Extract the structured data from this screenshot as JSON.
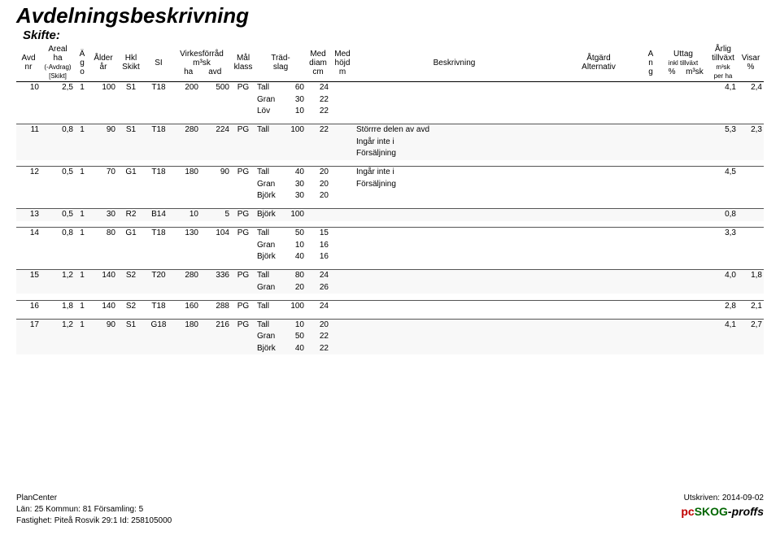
{
  "title": "Avdelningsbeskrivning",
  "subtitle": "Skifte:",
  "head": {
    "avd": "Avd",
    "nr": "nr",
    "areal": "Areal",
    "ha_lbl": "ha",
    "avdrag": "(-Avdrag)",
    "skikt_b": "[Skikt]",
    "ago": "Ä\ng\no",
    "alder": "Ålder",
    "ar": "år",
    "hkl": "Hkl",
    "skikt": "Skikt",
    "si": "SI",
    "virk1": "Virkesförråd",
    "virk2": "m³sk",
    "virk_ha": "ha",
    "virk_avd": "avd",
    "mal": "Mål",
    "klass": "klass",
    "trad": "Träd-",
    "slag": "slag",
    "med_d": "Med",
    "diam": "diam",
    "cm": "cm",
    "med_h": "Med",
    "hojd": "höjd",
    "m": "m",
    "beskr": "Beskrivning",
    "atg": "Åtgärd",
    "alt": "Alternativ",
    "ang": "A\nn\ng",
    "uttag": "Uttag",
    "inkltv": "inkl tillväxt",
    "pct": "%",
    "m3sk": "m³sk",
    "arlig": "Årlig",
    "tillv": "tillväxt",
    "m3skha": "m³sk",
    "perha": "per ha",
    "visar": "Visar",
    "pct2": "%"
  },
  "rows": [
    {
      "shade": false,
      "lines": [
        {
          "avd": "10",
          "areal": "2,5",
          "ago": "1",
          "alder": "100",
          "hkl": "S1",
          "si": "T18",
          "vha": "200",
          "vavd": "500",
          "mal": "PG",
          "trad": "Tall",
          "andel": "60",
          "diam": "24",
          "beskr": "",
          "tillv": "4,1",
          "visar": "2,4"
        },
        {
          "trad": "Gran",
          "andel": "30",
          "diam": "22"
        },
        {
          "trad": "Löv",
          "andel": "10",
          "diam": "22"
        }
      ]
    },
    {
      "shade": true,
      "lines": [
        {
          "avd": "11",
          "areal": "0,8",
          "ago": "1",
          "alder": "90",
          "hkl": "S1",
          "si": "T18",
          "vha": "280",
          "vavd": "224",
          "mal": "PG",
          "trad": "Tall",
          "andel": "100",
          "diam": "22",
          "beskr": "Störrre delen av avd",
          "tillv": "5,3",
          "visar": "2,3"
        },
        {
          "beskr": "Ingår inte i"
        },
        {
          "beskr": "Försäljning"
        }
      ]
    },
    {
      "shade": false,
      "lines": [
        {
          "avd": "12",
          "areal": "0,5",
          "ago": "1",
          "alder": "70",
          "hkl": "G1",
          "si": "T18",
          "vha": "180",
          "vavd": "90",
          "mal": "PG",
          "trad": "Tall",
          "andel": "40",
          "diam": "20",
          "beskr": "Ingår inte i",
          "tillv": "4,5",
          "visar": ""
        },
        {
          "trad": "Gran",
          "andel": "30",
          "diam": "20",
          "beskr": "Försäljning"
        },
        {
          "trad": "Björk",
          "andel": "30",
          "diam": "20"
        }
      ]
    },
    {
      "shade": true,
      "lines": [
        {
          "avd": "13",
          "areal": "0,5",
          "ago": "1",
          "alder": "30",
          "hkl": "R2",
          "si": "B14",
          "vha": "10",
          "vavd": "5",
          "mal": "PG",
          "trad": "Björk",
          "andel": "100",
          "diam": "",
          "beskr": "",
          "tillv": "0,8",
          "visar": ""
        }
      ]
    },
    {
      "shade": false,
      "lines": [
        {
          "avd": "14",
          "areal": "0,8",
          "ago": "1",
          "alder": "80",
          "hkl": "G1",
          "si": "T18",
          "vha": "130",
          "vavd": "104",
          "mal": "PG",
          "trad": "Tall",
          "andel": "50",
          "diam": "15",
          "beskr": "",
          "tillv": "3,3",
          "visar": ""
        },
        {
          "trad": "Gran",
          "andel": "10",
          "diam": "16"
        },
        {
          "trad": "Björk",
          "andel": "40",
          "diam": "16"
        }
      ]
    },
    {
      "shade": true,
      "lines": [
        {
          "avd": "15",
          "areal": "1,2",
          "ago": "1",
          "alder": "140",
          "hkl": "S2",
          "si": "T20",
          "vha": "280",
          "vavd": "336",
          "mal": "PG",
          "trad": "Tall",
          "andel": "80",
          "diam": "24",
          "beskr": "",
          "tillv": "4,0",
          "visar": "1,8"
        },
        {
          "trad": "Gran",
          "andel": "20",
          "diam": "26"
        }
      ]
    },
    {
      "shade": false,
      "lines": [
        {
          "avd": "16",
          "areal": "1,8",
          "ago": "1",
          "alder": "140",
          "hkl": "S2",
          "si": "T18",
          "vha": "160",
          "vavd": "288",
          "mal": "PG",
          "trad": "Tall",
          "andel": "100",
          "diam": "24",
          "beskr": "",
          "tillv": "2,8",
          "visar": "2,1"
        }
      ]
    },
    {
      "shade": true,
      "lines": [
        {
          "avd": "17",
          "areal": "1,2",
          "ago": "1",
          "alder": "90",
          "hkl": "S1",
          "si": "G18",
          "vha": "180",
          "vavd": "216",
          "mal": "PG",
          "trad": "Tall",
          "andel": "10",
          "diam": "20",
          "beskr": "",
          "tillv": "4,1",
          "visar": "2,7"
        },
        {
          "trad": "Gran",
          "andel": "50",
          "diam": "22"
        },
        {
          "trad": "Björk",
          "andel": "40",
          "diam": "22"
        }
      ]
    }
  ],
  "footer": {
    "l1": "PlanCenter",
    "l2": "Län: 25  Kommun: 81  Församling: 5",
    "l3": "Fastighet: Piteå Rosvik 29:1    Id: 258105000",
    "r1": "Utskriven: 2014-09-02",
    "brand_pc": "pc",
    "brand_skog": "SKOG",
    "brand_proffs": "-proffs"
  }
}
